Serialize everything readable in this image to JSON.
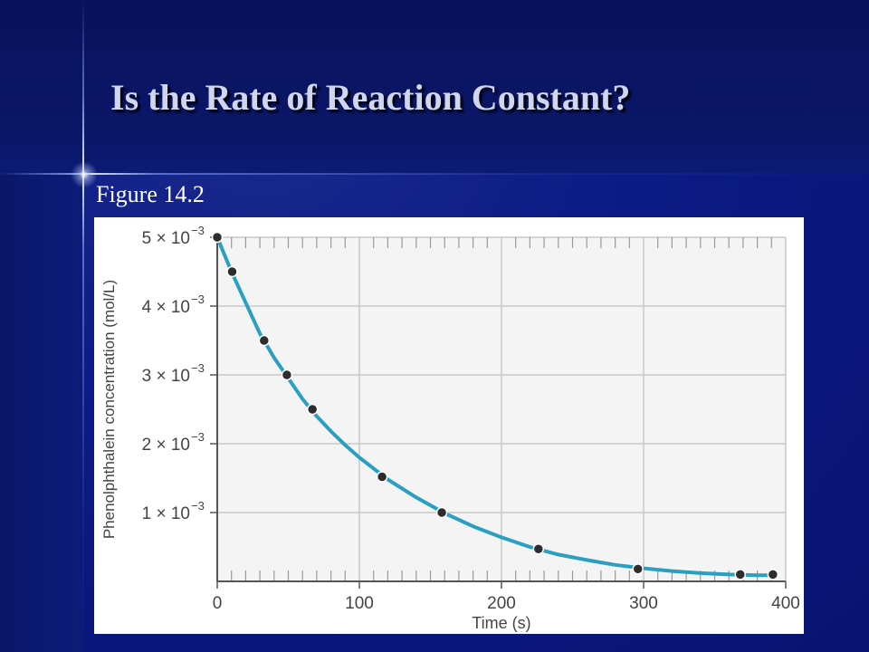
{
  "slide": {
    "title": "Is the Rate of Reaction Constant?",
    "figure_label": "Figure 14.2"
  },
  "colors": {
    "curve": "#2a9fc0",
    "points": "#2d2d2d",
    "grid": "#c8c8c8"
  },
  "chart_data": {
    "type": "scatter",
    "title": "",
    "xlabel": "Time (s)",
    "ylabel": "Phenolphthalein concentration (mol/L)",
    "xlim": [
      0,
      400
    ],
    "ylim": [
      0,
      0.005
    ],
    "grid": true,
    "x_ticks": [
      {
        "value": 0,
        "label": "0"
      },
      {
        "value": 100,
        "label": "100"
      },
      {
        "value": 200,
        "label": "200"
      },
      {
        "value": 300,
        "label": "300"
      },
      {
        "value": 400,
        "label": "400"
      }
    ],
    "y_ticks": [
      {
        "value": 0.001,
        "mantissa": "1 × 10",
        "exp": "−3"
      },
      {
        "value": 0.002,
        "mantissa": "2 × 10",
        "exp": "−3"
      },
      {
        "value": 0.003,
        "mantissa": "3 × 10",
        "exp": "−3"
      },
      {
        "value": 0.004,
        "mantissa": "4 × 10",
        "exp": "−3"
      },
      {
        "value": 0.005,
        "mantissa": "5 × 10",
        "exp": "−3"
      }
    ],
    "series": [
      {
        "x": [
          0,
          10.5,
          33,
          49,
          67,
          116,
          158,
          226,
          296,
          368,
          391
        ],
        "y": [
          0.005,
          0.0045,
          0.0035,
          0.003,
          0.0025,
          0.00152,
          0.001,
          0.00047,
          0.00018,
          0.0001,
          0.0001
        ]
      }
    ],
    "curve": {
      "x": [
        0,
        10,
        20,
        30,
        40,
        50,
        60,
        70,
        80,
        90,
        100,
        120,
        140,
        160,
        180,
        200,
        220,
        240,
        260,
        280,
        300,
        320,
        340,
        360,
        380,
        391
      ],
      "y": [
        0.005,
        0.0045,
        0.00405,
        0.0036,
        0.00325,
        0.00295,
        0.00265,
        0.0024,
        0.00218,
        0.00198,
        0.0018,
        0.00148,
        0.00122,
        0.00099,
        0.0008,
        0.00064,
        0.0005,
        0.00039,
        0.00031,
        0.00024,
        0.00019,
        0.00015,
        0.00012,
        0.0001,
        9e-05,
        9e-05
      ]
    }
  }
}
